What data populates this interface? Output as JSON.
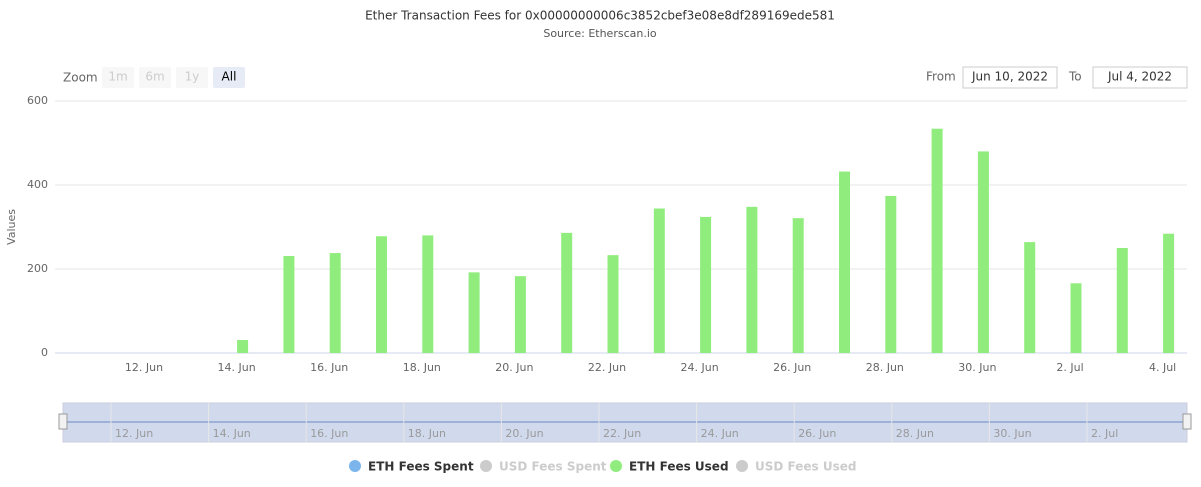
{
  "chart_data": {
    "type": "bar",
    "title": "Ether Transaction Fees for 0x00000000006c3852cbef3e08e8df289169ede581",
    "subtitle": "Source: Etherscan.io",
    "y_label": "Values",
    "categories": [
      null,
      null,
      "12. Jun",
      null,
      "14. Jun",
      null,
      "16. Jun",
      null,
      "18. Jun",
      null,
      "20. Jun",
      null,
      "22. Jun",
      null,
      "24. Jun",
      null,
      "26. Jun",
      null,
      "28. Jun",
      null,
      "30. Jun",
      null,
      "2. Jul",
      null,
      "4. Jul"
    ],
    "series": [
      {
        "name": "ETH Fees Used",
        "color": "#90ed7d",
        "values": [
          0,
          0,
          0,
          0,
          31,
          231,
          238,
          278,
          280,
          192,
          183,
          286,
          233,
          344,
          324,
          348,
          321,
          432,
          374,
          534,
          480,
          264,
          166,
          250,
          284
        ]
      }
    ],
    "legend_items": [
      {
        "name": "ETH Fees Spent",
        "color": "#7cb5ec",
        "visible": true
      },
      {
        "name": "USD Fees Spent",
        "color": "#cccccc",
        "visible": false
      },
      {
        "name": "ETH Fees Used",
        "color": "#90ed7d",
        "visible": true
      },
      {
        "name": "USD Fees Used",
        "color": "#cccccc",
        "visible": false
      }
    ],
    "ylim": [
      0,
      600
    ],
    "yticks": [
      0,
      200,
      400,
      600
    ],
    "grid": true
  },
  "range_selector": {
    "zoom_label": "Zoom",
    "buttons": [
      "1m",
      "6m",
      "1y",
      "All"
    ],
    "active": "All",
    "from_label": "From",
    "from": "Jun 10, 2022",
    "to_label": "To",
    "to": "Jul 4, 2022"
  }
}
